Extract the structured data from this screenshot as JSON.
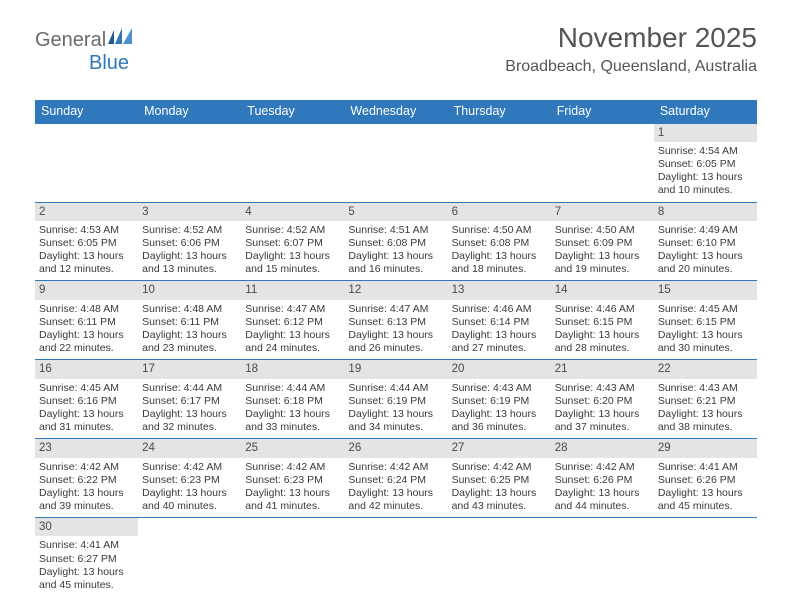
{
  "logo": {
    "part1": "General",
    "part2": "Blue",
    "flag_color": "#2f78bb"
  },
  "title": "November 2025",
  "location": "Broadbeach, Queensland, Australia",
  "dow": [
    "Sunday",
    "Monday",
    "Tuesday",
    "Wednesday",
    "Thursday",
    "Friday",
    "Saturday"
  ],
  "colors": {
    "header_bg": "#2f78bb",
    "daynum_bg": "#e4e4e4",
    "text": "#3a3a3a",
    "border": "#2f78bb"
  },
  "weeks": [
    {
      "nums": [
        "",
        "",
        "",
        "",
        "",
        "",
        "1"
      ],
      "sunrise": [
        "",
        "",
        "",
        "",
        "",
        "",
        "Sunrise: 4:54 AM"
      ],
      "sunset": [
        "",
        "",
        "",
        "",
        "",
        "",
        "Sunset: 6:05 PM"
      ],
      "day1": [
        "",
        "",
        "",
        "",
        "",
        "",
        "Daylight: 13 hours"
      ],
      "day2": [
        "",
        "",
        "",
        "",
        "",
        "",
        "and 10 minutes."
      ]
    },
    {
      "nums": [
        "2",
        "3",
        "4",
        "5",
        "6",
        "7",
        "8"
      ],
      "sunrise": [
        "Sunrise: 4:53 AM",
        "Sunrise: 4:52 AM",
        "Sunrise: 4:52 AM",
        "Sunrise: 4:51 AM",
        "Sunrise: 4:50 AM",
        "Sunrise: 4:50 AM",
        "Sunrise: 4:49 AM"
      ],
      "sunset": [
        "Sunset: 6:05 PM",
        "Sunset: 6:06 PM",
        "Sunset: 6:07 PM",
        "Sunset: 6:08 PM",
        "Sunset: 6:08 PM",
        "Sunset: 6:09 PM",
        "Sunset: 6:10 PM"
      ],
      "day1": [
        "Daylight: 13 hours",
        "Daylight: 13 hours",
        "Daylight: 13 hours",
        "Daylight: 13 hours",
        "Daylight: 13 hours",
        "Daylight: 13 hours",
        "Daylight: 13 hours"
      ],
      "day2": [
        "and 12 minutes.",
        "and 13 minutes.",
        "and 15 minutes.",
        "and 16 minutes.",
        "and 18 minutes.",
        "and 19 minutes.",
        "and 20 minutes."
      ]
    },
    {
      "nums": [
        "9",
        "10",
        "11",
        "12",
        "13",
        "14",
        "15"
      ],
      "sunrise": [
        "Sunrise: 4:48 AM",
        "Sunrise: 4:48 AM",
        "Sunrise: 4:47 AM",
        "Sunrise: 4:47 AM",
        "Sunrise: 4:46 AM",
        "Sunrise: 4:46 AM",
        "Sunrise: 4:45 AM"
      ],
      "sunset": [
        "Sunset: 6:11 PM",
        "Sunset: 6:11 PM",
        "Sunset: 6:12 PM",
        "Sunset: 6:13 PM",
        "Sunset: 6:14 PM",
        "Sunset: 6:15 PM",
        "Sunset: 6:15 PM"
      ],
      "day1": [
        "Daylight: 13 hours",
        "Daylight: 13 hours",
        "Daylight: 13 hours",
        "Daylight: 13 hours",
        "Daylight: 13 hours",
        "Daylight: 13 hours",
        "Daylight: 13 hours"
      ],
      "day2": [
        "and 22 minutes.",
        "and 23 minutes.",
        "and 24 minutes.",
        "and 26 minutes.",
        "and 27 minutes.",
        "and 28 minutes.",
        "and 30 minutes."
      ]
    },
    {
      "nums": [
        "16",
        "17",
        "18",
        "19",
        "20",
        "21",
        "22"
      ],
      "sunrise": [
        "Sunrise: 4:45 AM",
        "Sunrise: 4:44 AM",
        "Sunrise: 4:44 AM",
        "Sunrise: 4:44 AM",
        "Sunrise: 4:43 AM",
        "Sunrise: 4:43 AM",
        "Sunrise: 4:43 AM"
      ],
      "sunset": [
        "Sunset: 6:16 PM",
        "Sunset: 6:17 PM",
        "Sunset: 6:18 PM",
        "Sunset: 6:19 PM",
        "Sunset: 6:19 PM",
        "Sunset: 6:20 PM",
        "Sunset: 6:21 PM"
      ],
      "day1": [
        "Daylight: 13 hours",
        "Daylight: 13 hours",
        "Daylight: 13 hours",
        "Daylight: 13 hours",
        "Daylight: 13 hours",
        "Daylight: 13 hours",
        "Daylight: 13 hours"
      ],
      "day2": [
        "and 31 minutes.",
        "and 32 minutes.",
        "and 33 minutes.",
        "and 34 minutes.",
        "and 36 minutes.",
        "and 37 minutes.",
        "and 38 minutes."
      ]
    },
    {
      "nums": [
        "23",
        "24",
        "25",
        "26",
        "27",
        "28",
        "29"
      ],
      "sunrise": [
        "Sunrise: 4:42 AM",
        "Sunrise: 4:42 AM",
        "Sunrise: 4:42 AM",
        "Sunrise: 4:42 AM",
        "Sunrise: 4:42 AM",
        "Sunrise: 4:42 AM",
        "Sunrise: 4:41 AM"
      ],
      "sunset": [
        "Sunset: 6:22 PM",
        "Sunset: 6:23 PM",
        "Sunset: 6:23 PM",
        "Sunset: 6:24 PM",
        "Sunset: 6:25 PM",
        "Sunset: 6:26 PM",
        "Sunset: 6:26 PM"
      ],
      "day1": [
        "Daylight: 13 hours",
        "Daylight: 13 hours",
        "Daylight: 13 hours",
        "Daylight: 13 hours",
        "Daylight: 13 hours",
        "Daylight: 13 hours",
        "Daylight: 13 hours"
      ],
      "day2": [
        "and 39 minutes.",
        "and 40 minutes.",
        "and 41 minutes.",
        "and 42 minutes.",
        "and 43 minutes.",
        "and 44 minutes.",
        "and 45 minutes."
      ]
    },
    {
      "nums": [
        "30",
        "",
        "",
        "",
        "",
        "",
        ""
      ],
      "sunrise": [
        "Sunrise: 4:41 AM",
        "",
        "",
        "",
        "",
        "",
        ""
      ],
      "sunset": [
        "Sunset: 6:27 PM",
        "",
        "",
        "",
        "",
        "",
        ""
      ],
      "day1": [
        "Daylight: 13 hours",
        "",
        "",
        "",
        "",
        "",
        ""
      ],
      "day2": [
        "and 45 minutes.",
        "",
        "",
        "",
        "",
        "",
        ""
      ]
    }
  ]
}
